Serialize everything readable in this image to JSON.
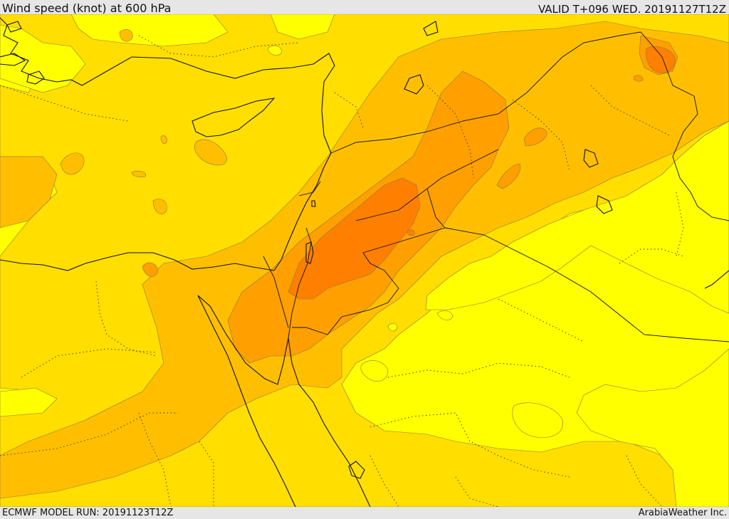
{
  "header": {
    "title": "Wind speed (knot) at 600 hPa",
    "valid_time": "VALID T+096 WED. 20191127T12Z"
  },
  "footer": {
    "model_run": "ECMWF MODEL RUN: 20191123T12Z",
    "credit": "ArabiaWeather Inc."
  },
  "colors": {
    "band_lightest": "#ffff00",
    "band_light": "#ffde00",
    "band_mid": "#ffbf00",
    "band_strong": "#ff9f00",
    "band_strongest": "#ff7f00",
    "chrome_background": "#e6e6e6"
  }
}
